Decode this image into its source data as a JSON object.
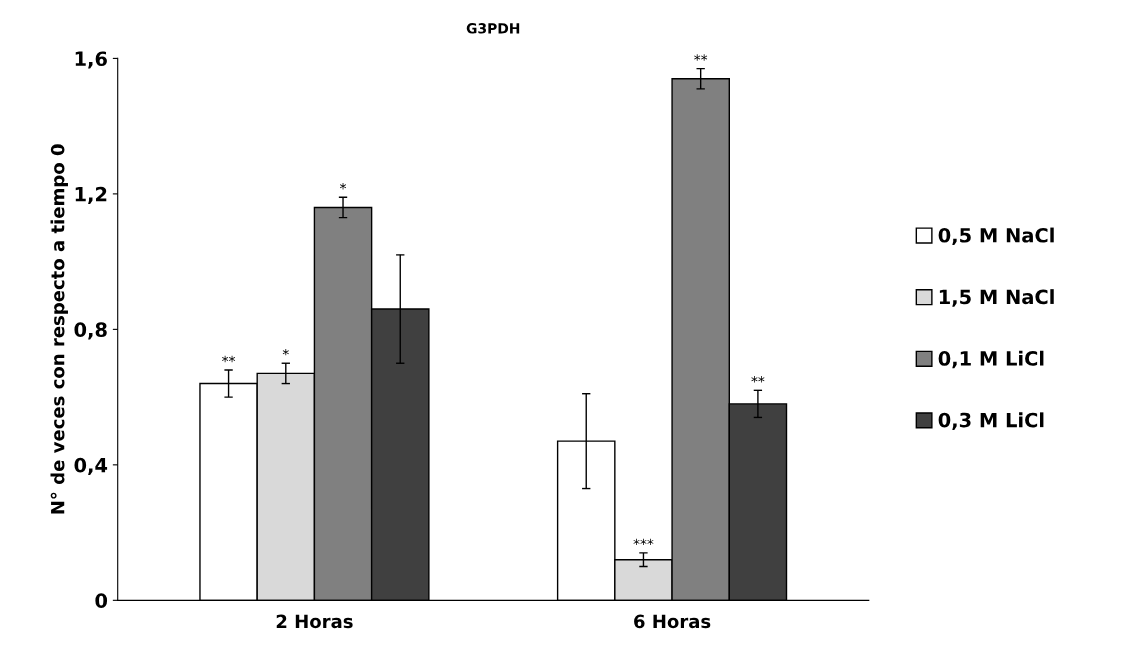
{
  "chart_data": {
    "type": "bar",
    "title": "G3PDH",
    "ylabel": "N° de veces con respecto a tiempo 0",
    "categories": [
      "2 Horas",
      "6 Horas"
    ],
    "series": [
      {
        "name": "0,5 M NaCl",
        "color": "#ffffff",
        "values": [
          0.64,
          0.47
        ],
        "errors": [
          0.04,
          0.14
        ],
        "value_labels": [
          "**",
          null
        ]
      },
      {
        "name": "1,5 M NaCl",
        "color": "#d9d9d9",
        "values": [
          0.67,
          0.12
        ],
        "errors": [
          0.03,
          0.02
        ],
        "value_labels": [
          "*",
          "***"
        ]
      },
      {
        "name": "0,1 M LiCl",
        "color": "#808080",
        "values": [
          1.16,
          1.54
        ],
        "errors": [
          0.03,
          0.03
        ],
        "value_labels": [
          "*",
          "**"
        ]
      },
      {
        "name": "0,3 M LiCl",
        "color": "#404040",
        "values": [
          0.86,
          0.58
        ],
        "errors": [
          0.16,
          0.04
        ],
        "value_labels": [
          null,
          "**"
        ]
      }
    ],
    "ylim": [
      0,
      1.6
    ],
    "yticks": [
      0,
      {
        "value": 0.4,
        "label": "0,4"
      },
      {
        "value": 0.8,
        "label": "0,8"
      },
      {
        "value": 1.2,
        "label": "1,2"
      },
      {
        "value": 1.6,
        "label": "1,6"
      }
    ],
    "grid": false,
    "legend": "right"
  }
}
